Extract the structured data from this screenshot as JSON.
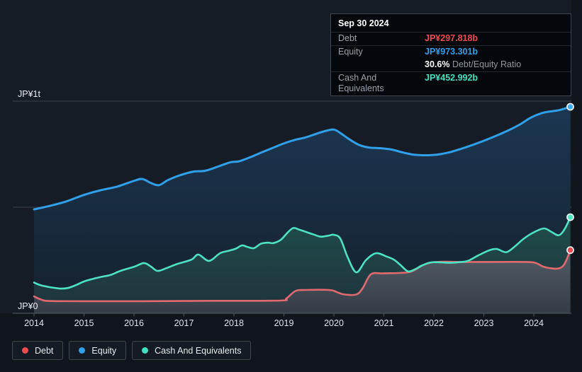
{
  "colors": {
    "background": "#10151c",
    "chart_background": "#161c26",
    "debt": "#ef4a50",
    "equity": "#2f9fe8",
    "cash": "#40e2c2"
  },
  "tooltip": {
    "date": "Sep 30 2024",
    "debt_label": "Debt",
    "debt_value": "JP¥297.818b",
    "equity_label": "Equity",
    "equity_value": "JP¥973.301b",
    "ratio_value": "30.6%",
    "ratio_label": "Debt/Equity Ratio",
    "cash_label": "Cash And Equivalents",
    "cash_value": "JP¥452.992b"
  },
  "legend": {
    "items": [
      {
        "id": "debt",
        "label": "Debt"
      },
      {
        "id": "equity",
        "label": "Equity"
      },
      {
        "id": "cash",
        "label": "Cash And Equivalents"
      }
    ]
  },
  "chart_data": {
    "type": "area",
    "x_range": [
      2014,
      2024.75
    ],
    "y_range": [
      0,
      1000
    ],
    "y_unit": "JP¥ billions",
    "x_ticks": [
      2014,
      2015,
      2016,
      2017,
      2018,
      2019,
      2020,
      2021,
      2022,
      2023,
      2024
    ],
    "y_gridlines": [
      1000,
      500
    ],
    "y_tick_labels": [
      {
        "value": 1000,
        "label": "JP¥1t"
      },
      {
        "value": 0,
        "label": "JP¥0"
      }
    ],
    "legend_position": "bottom-left",
    "series": [
      {
        "id": "equity",
        "name": "Equity",
        "color": "#31a0ea",
        "marker_color": "#43aaf0",
        "line_width": 3,
        "points": [
          [
            2014,
            490
          ],
          [
            2014.31,
            506
          ],
          [
            2014.64,
            527
          ],
          [
            2015,
            558
          ],
          [
            2015.33,
            580
          ],
          [
            2015.66,
            597
          ],
          [
            2016.01,
            625
          ],
          [
            2016.17,
            633
          ],
          [
            2016.34,
            614
          ],
          [
            2016.5,
            604
          ],
          [
            2016.68,
            628
          ],
          [
            2016.91,
            650
          ],
          [
            2017.19,
            668
          ],
          [
            2017.43,
            672
          ],
          [
            2017.72,
            695
          ],
          [
            2017.93,
            712
          ],
          [
            2018.11,
            717
          ],
          [
            2018.35,
            738
          ],
          [
            2018.57,
            760
          ],
          [
            2018.78,
            780
          ],
          [
            2018.99,
            800
          ],
          [
            2019.23,
            818
          ],
          [
            2019.42,
            828
          ],
          [
            2019.66,
            847
          ],
          [
            2019.84,
            860
          ],
          [
            2020,
            866
          ],
          [
            2020.14,
            848
          ],
          [
            2020.31,
            820
          ],
          [
            2020.51,
            793
          ],
          [
            2020.71,
            781
          ],
          [
            2020.94,
            778
          ],
          [
            2021.15,
            772
          ],
          [
            2021.38,
            758
          ],
          [
            2021.59,
            748
          ],
          [
            2021.83,
            745
          ],
          [
            2022.07,
            748
          ],
          [
            2022.3,
            758
          ],
          [
            2022.54,
            775
          ],
          [
            2022.78,
            794
          ],
          [
            2023.02,
            815
          ],
          [
            2023.25,
            837
          ],
          [
            2023.49,
            862
          ],
          [
            2023.72,
            890
          ],
          [
            2023.9,
            917
          ],
          [
            2024.03,
            932
          ],
          [
            2024.2,
            946
          ],
          [
            2024.38,
            953
          ],
          [
            2024.52,
            958
          ],
          [
            2024.73,
            973.301
          ]
        ]
      },
      {
        "id": "cash",
        "name": "Cash And Equivalents",
        "color": "#4de2c4",
        "marker_color": "#4fe6c6",
        "line_width": 2.6,
        "points": [
          [
            2014,
            145
          ],
          [
            2014.17,
            130
          ],
          [
            2014.5,
            117
          ],
          [
            2014.67,
            119
          ],
          [
            2014.84,
            133
          ],
          [
            2015,
            150
          ],
          [
            2015.19,
            163
          ],
          [
            2015.35,
            172
          ],
          [
            2015.52,
            180
          ],
          [
            2015.73,
            200
          ],
          [
            2016.01,
            220
          ],
          [
            2016.2,
            237
          ],
          [
            2016.34,
            220
          ],
          [
            2016.47,
            200
          ],
          [
            2016.65,
            213
          ],
          [
            2016.87,
            233
          ],
          [
            2017.15,
            253
          ],
          [
            2017.29,
            277
          ],
          [
            2017.5,
            247
          ],
          [
            2017.72,
            283
          ],
          [
            2017.9,
            295
          ],
          [
            2018.04,
            305
          ],
          [
            2018.16,
            320
          ],
          [
            2018.28,
            312
          ],
          [
            2018.4,
            307
          ],
          [
            2018.54,
            328
          ],
          [
            2018.68,
            333
          ],
          [
            2018.79,
            331
          ],
          [
            2018.94,
            347
          ],
          [
            2019.08,
            382
          ],
          [
            2019.19,
            402
          ],
          [
            2019.31,
            394
          ],
          [
            2019.45,
            383
          ],
          [
            2019.6,
            371
          ],
          [
            2019.74,
            361
          ],
          [
            2019.89,
            366
          ],
          [
            2020,
            370
          ],
          [
            2020.13,
            351
          ],
          [
            2020.28,
            262
          ],
          [
            2020.45,
            193
          ],
          [
            2020.64,
            250
          ],
          [
            2020.84,
            283
          ],
          [
            2021.05,
            268
          ],
          [
            2021.2,
            253
          ],
          [
            2021.33,
            228
          ],
          [
            2021.48,
            198
          ],
          [
            2021.62,
            207
          ],
          [
            2021.76,
            225
          ],
          [
            2021.94,
            240
          ],
          [
            2022.14,
            240
          ],
          [
            2022.33,
            238
          ],
          [
            2022.51,
            241
          ],
          [
            2022.68,
            247
          ],
          [
            2022.89,
            273
          ],
          [
            2023.11,
            297
          ],
          [
            2023.26,
            303
          ],
          [
            2023.45,
            288
          ],
          [
            2023.62,
            315
          ],
          [
            2023.79,
            350
          ],
          [
            2023.97,
            378
          ],
          [
            2024.2,
            400
          ],
          [
            2024.35,
            384
          ],
          [
            2024.5,
            368
          ],
          [
            2024.62,
            398
          ],
          [
            2024.73,
            452.992
          ]
        ]
      },
      {
        "id": "debt",
        "name": "Debt",
        "color": "#e06a6f",
        "marker_color": "#e8474d",
        "line_width": 2.6,
        "points": [
          [
            2014,
            80
          ],
          [
            2014.14,
            65
          ],
          [
            2014.31,
            58
          ],
          [
            2015.02,
            57
          ],
          [
            2016.16,
            57
          ],
          [
            2017.57,
            59
          ],
          [
            2018.92,
            60
          ],
          [
            2019.05,
            70
          ],
          [
            2019.23,
            105
          ],
          [
            2019.42,
            110
          ],
          [
            2019.9,
            110
          ],
          [
            2020.05,
            101
          ],
          [
            2020.2,
            89
          ],
          [
            2020.45,
            89
          ],
          [
            2020.58,
            120
          ],
          [
            2020.74,
            184
          ],
          [
            2020.98,
            188
          ],
          [
            2021.3,
            190
          ],
          [
            2021.55,
            197
          ],
          [
            2021.79,
            228
          ],
          [
            2021.97,
            240
          ],
          [
            2022.2,
            243
          ],
          [
            2022.54,
            242
          ],
          [
            2023.25,
            242
          ],
          [
            2023.82,
            242
          ],
          [
            2024.03,
            238
          ],
          [
            2024.2,
            219
          ],
          [
            2024.38,
            211
          ],
          [
            2024.52,
            213
          ],
          [
            2024.62,
            235
          ],
          [
            2024.73,
            297.818
          ]
        ]
      }
    ]
  }
}
